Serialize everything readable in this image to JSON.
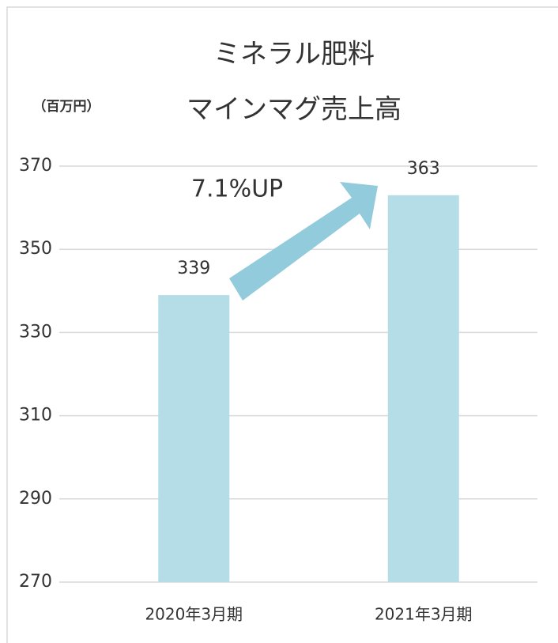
{
  "chart_data": {
    "type": "bar",
    "title": [
      "ミネラル肥料",
      "マインマグ売上高"
    ],
    "y_axis_label": "（百万円）",
    "annotation": "7.1%UP",
    "categories": [
      "2020年3月期",
      "2021年3月期"
    ],
    "values": [
      339,
      363
    ],
    "color": "#b5dde8",
    "ylim": [
      270,
      370
    ],
    "yticks": [
      270,
      290,
      310,
      330,
      350,
      370
    ],
    "grid": true
  }
}
